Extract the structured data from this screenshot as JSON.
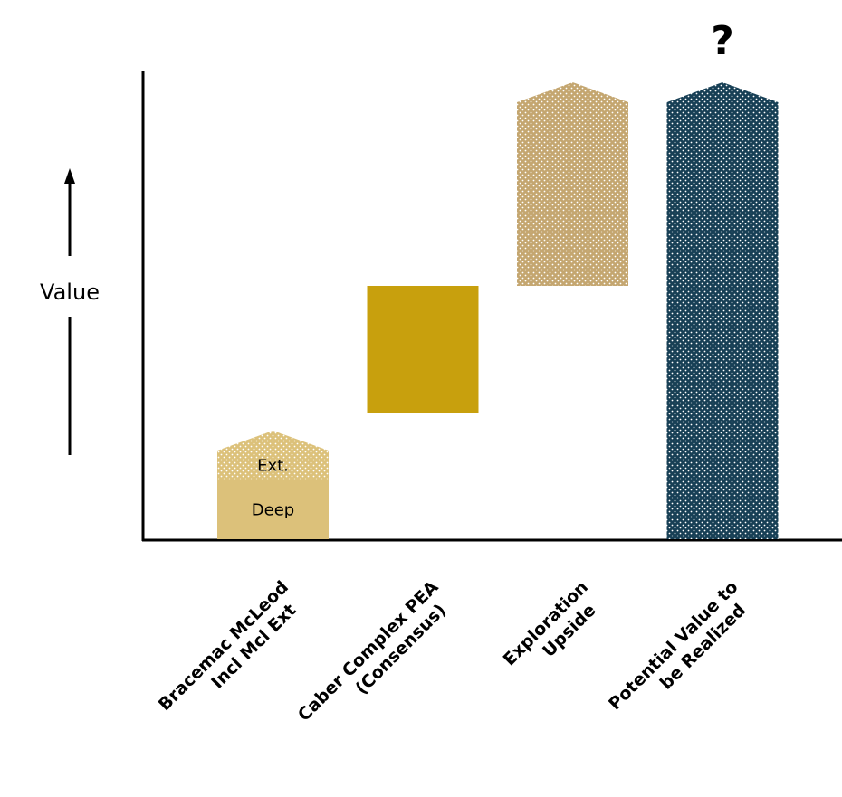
{
  "chart_data": {
    "type": "bar",
    "subtype": "waterfall",
    "ylabel": "Value",
    "grid": false,
    "legend": "none",
    "annotation": "?",
    "categories": [
      "Bracemac McLeod Incl Mcl Ext",
      "Caber Complex PEA (Consensus)",
      "Exploration Upside",
      "Potential Value to be Realized"
    ],
    "category_lines": [
      [
        "Bracemac McLeod",
        "Incl Mcl Ext"
      ],
      [
        "Caber Complex PEA",
        "(Consensus)"
      ],
      [
        "Exploration",
        "Upside"
      ],
      [
        "Potential Value to",
        "be Realized"
      ]
    ],
    "bars": [
      {
        "category": "Bracemac McLeod Incl Mcl Ext",
        "segments": [
          {
            "label": "Deep",
            "base": 0,
            "value": 13,
            "fill": "#dcc17a",
            "pattern": "solid",
            "shape": "rect"
          },
          {
            "label": "Ext.",
            "base": 13,
            "value": 11,
            "fill": "#dcc17a",
            "pattern": "dotted",
            "shape": "arrow"
          }
        ]
      },
      {
        "category": "Caber Complex PEA (Consensus)",
        "segments": [
          {
            "label": "",
            "base": 28,
            "value": 28,
            "fill": "#c8a00d",
            "pattern": "solid",
            "shape": "rect"
          }
        ]
      },
      {
        "category": "Exploration Upside",
        "segments": [
          {
            "label": "",
            "base": 56,
            "value": 45,
            "fill": "#c4a670",
            "pattern": "dotted",
            "shape": "arrow"
          }
        ]
      },
      {
        "category": "Potential Value to be Realized",
        "segments": [
          {
            "label": "",
            "base": 0,
            "value": 101,
            "fill": "#173f55",
            "pattern": "dotted",
            "shape": "arrow"
          }
        ]
      }
    ],
    "ylim": [
      0,
      105
    ]
  }
}
